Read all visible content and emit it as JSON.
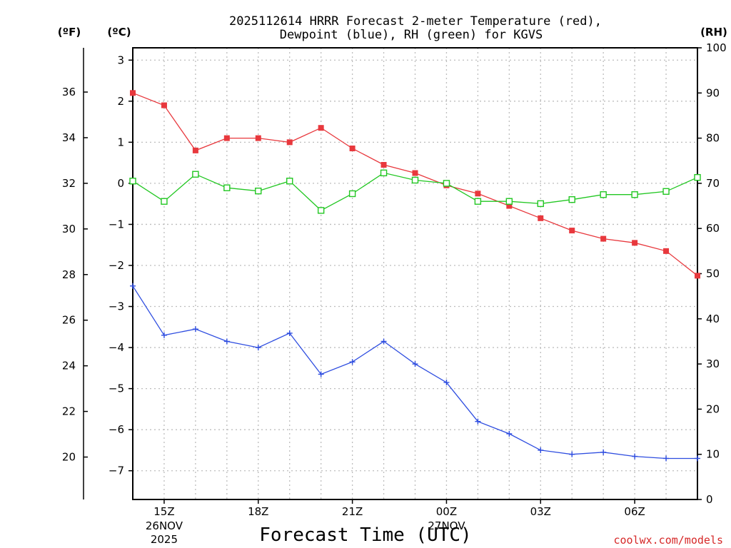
{
  "chart_data": {
    "type": "line",
    "title_line1": "2025112614 HRRR Forecast 2-meter Temperature (red),",
    "title_line2": "Dewpoint (blue), RH (green) for KGVS",
    "xlabel": "Forecast Time (UTC)",
    "credit": "coolwx.com/models",
    "units": {
      "fahrenheit": "(ºF)",
      "celsius": "(ºC)",
      "rh": "(RH)"
    },
    "x": [
      14,
      15,
      16,
      17,
      18,
      19,
      20,
      21,
      22,
      23,
      24,
      25,
      26,
      27,
      28,
      29,
      30,
      31,
      32
    ],
    "xlim": [
      14,
      32
    ],
    "x_ticks": [
      {
        "x": 15,
        "label": "15Z",
        "sub1": "26NOV",
        "sub2": "2025"
      },
      {
        "x": 18,
        "label": "18Z",
        "sub1": "",
        "sub2": ""
      },
      {
        "x": 21,
        "label": "21Z",
        "sub1": "",
        "sub2": ""
      },
      {
        "x": 24,
        "label": "00Z",
        "sub1": "27NOV",
        "sub2": ""
      },
      {
        "x": 27,
        "label": "03Z",
        "sub1": "",
        "sub2": ""
      },
      {
        "x": 30,
        "label": "06Z",
        "sub1": "",
        "sub2": ""
      }
    ],
    "ylim_c": [
      -7.7,
      3.3
    ],
    "y_ticks_c": [
      "3",
      "2",
      "1",
      "0",
      "−1",
      "−2",
      "−3",
      "−4",
      "−5",
      "−6",
      "−7"
    ],
    "y_ticks_c_values": [
      3,
      2,
      1,
      0,
      -1,
      -2,
      -3,
      -4,
      -5,
      -6,
      -7
    ],
    "y_ticks_f": [
      "36",
      "34",
      "32",
      "30",
      "28",
      "26",
      "24",
      "22",
      "20"
    ],
    "y_ticks_f_values": [
      36,
      34,
      32,
      30,
      28,
      26,
      24,
      22,
      20
    ],
    "rh_lim": [
      0,
      100
    ],
    "y_ticks_rh": [
      "100",
      "90",
      "80",
      "70",
      "60",
      "50",
      "40",
      "30",
      "20",
      "10",
      "0"
    ],
    "y_ticks_rh_values": [
      100,
      90,
      80,
      70,
      60,
      50,
      40,
      30,
      20,
      10,
      0
    ],
    "series": [
      {
        "name": "Temperature",
        "axis": "c",
        "color": "#e8383d",
        "marker": "filled-square",
        "values": [
          2.2,
          1.9,
          0.8,
          1.1,
          1.1,
          1.0,
          1.35,
          0.85,
          0.45,
          0.25,
          -0.05,
          -0.25,
          -0.55,
          -0.85,
          -1.15,
          -1.35,
          -1.45,
          -1.65,
          -2.25
        ]
      },
      {
        "name": "Dewpoint",
        "axis": "c",
        "color": "#2e4de0",
        "marker": "plus",
        "values": [
          -2.5,
          -3.7,
          -3.55,
          -3.85,
          -4.0,
          -3.65,
          -4.65,
          -4.35,
          -3.85,
          -4.4,
          -4.85,
          -5.8,
          -6.1,
          -6.5,
          -6.6,
          -6.55,
          -6.65,
          -6.7,
          -6.7
        ]
      },
      {
        "name": "RH",
        "axis": "rh",
        "color": "#22c722",
        "marker": "open-square",
        "values": [
          70.5,
          66,
          72,
          69,
          68.3,
          70.5,
          64,
          67.7,
          72.3,
          70.7,
          70,
          66,
          66,
          65.5,
          66.4,
          67.5,
          67.5,
          68.2,
          71.3
        ]
      }
    ]
  }
}
